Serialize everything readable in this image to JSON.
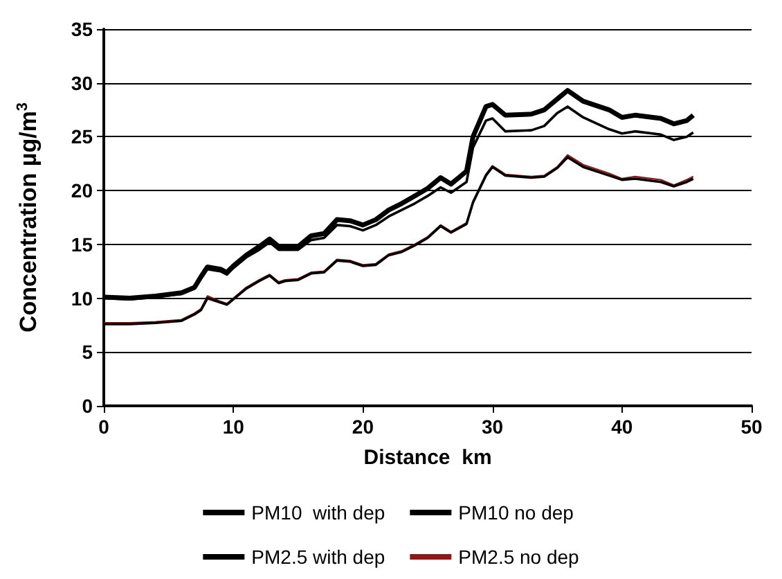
{
  "chart_data": {
    "type": "line",
    "xlabel": "Distance  km",
    "ylabel": "Concentration µg/m$^{3}$",
    "xlim": [
      0,
      50
    ],
    "xticks": [
      0,
      10,
      20,
      30,
      40,
      50
    ],
    "ylim": [
      0,
      35
    ],
    "yticks": [
      0,
      5,
      10,
      15,
      20,
      25,
      30,
      35
    ],
    "grid": "y",
    "legend": "bottom",
    "marker": "none",
    "line_style": "solid",
    "x": [
      0,
      2,
      4,
      6,
      7,
      7.5,
      8,
      9,
      9.5,
      10,
      11,
      12,
      12.8,
      13.5,
      14,
      15,
      16,
      17,
      18,
      19,
      20,
      21,
      22,
      23,
      24,
      25,
      26,
      26.8,
      28,
      28.5,
      29.5,
      30,
      31,
      33,
      34,
      35,
      35.8,
      37,
      39,
      40,
      41,
      43,
      44,
      45,
      45.5
    ],
    "series": [
      {
        "name": "PM10  with dep",
        "color": "#000000",
        "values": [
          10,
          9.9,
          10.1,
          10.4,
          10.9,
          11.8,
          12.7,
          12.5,
          12.2,
          12.8,
          13.8,
          14.5,
          15.2,
          14.5,
          14.5,
          14.5,
          15.4,
          15.6,
          16.8,
          16.7,
          16.3,
          16.8,
          17.6,
          18.2,
          18.8,
          19.5,
          20.3,
          19.8,
          20.8,
          24,
          26.5,
          26.7,
          25.5,
          25.6,
          26,
          27.2,
          27.8,
          26.8,
          25.7,
          25.3,
          25.5,
          25.2,
          24.7,
          25,
          25.4
        ]
      },
      {
        "name": "PM10 no dep",
        "color": "#000000",
        "values": [
          10.1,
          10,
          10.2,
          10.5,
          11,
          12,
          12.9,
          12.7,
          12.4,
          13,
          14,
          14.8,
          15.5,
          14.8,
          14.8,
          14.8,
          15.8,
          16,
          17.3,
          17.2,
          16.8,
          17.3,
          18.2,
          18.8,
          19.5,
          20.2,
          21.2,
          20.6,
          21.8,
          25,
          27.8,
          28,
          27,
          27.1,
          27.5,
          28.5,
          29.3,
          28.3,
          27.5,
          26.8,
          27,
          26.7,
          26.2,
          26.5,
          27
        ]
      },
      {
        "name": "PM2.5 with dep",
        "color": "#000000",
        "values": [
          7.6,
          7.6,
          7.7,
          7.9,
          8.5,
          8.9,
          10,
          9.6,
          9.4,
          9.9,
          10.9,
          11.6,
          12.1,
          11.4,
          11.6,
          11.7,
          12.3,
          12.4,
          13.5,
          13.4,
          13,
          13.1,
          14,
          14.3,
          14.9,
          15.6,
          16.7,
          16.1,
          16.9,
          18.9,
          21.4,
          22.2,
          21.4,
          21.2,
          21.3,
          22.1,
          23.1,
          22.2,
          21.4,
          21,
          21.1,
          20.8,
          20.4,
          20.8,
          21.1
        ]
      },
      {
        "name": "PM2.5 no dep",
        "color": "#8b1a1a",
        "values": [
          7.7,
          7.7,
          7.8,
          8,
          8.6,
          9,
          10.2,
          9.7,
          9.5,
          10,
          11,
          11.7,
          12.2,
          11.5,
          11.7,
          11.8,
          12.4,
          12.5,
          13.6,
          13.5,
          13.1,
          13.2,
          14.1,
          14.4,
          15,
          15.7,
          16.8,
          16.2,
          17,
          19,
          21.5,
          22.3,
          21.5,
          21.3,
          21.4,
          22.2,
          23.3,
          22.4,
          21.6,
          21.1,
          21.3,
          21,
          20.5,
          21,
          21.3
        ]
      }
    ]
  }
}
